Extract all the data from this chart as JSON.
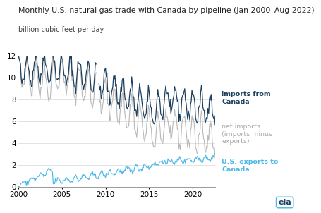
{
  "title": "Monthly U.S. natural gas trade with Canada by pipeline (Jan 2000–Aug 2022)",
  "ylabel": "billion cubic feet per day",
  "ylim": [
    0,
    12
  ],
  "yticks": [
    0,
    2,
    4,
    6,
    8,
    10,
    12
  ],
  "imports_color": "#1c3f5e",
  "net_imports_color": "#b8b8b8",
  "exports_color": "#4ab8e8",
  "imports_label": "imports from\nCanada",
  "net_imports_label": "net imports\n(imports minus\nexports)",
  "exports_label": "U.S. exports to\nCanada",
  "background_color": "#ffffff",
  "grid_color": "#d8d8d8",
  "title_fontsize": 7.8,
  "ylabel_fontsize": 7.0,
  "label_fontsize": 6.8,
  "tick_fontsize": 7.5
}
